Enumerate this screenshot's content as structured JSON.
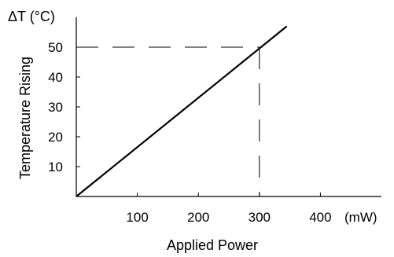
{
  "chart_data": {
    "type": "line",
    "title": "",
    "xlabel": "Applied Power",
    "x_unit_label": "(mW)",
    "ylabel": "Temperature Rising",
    "y_unit_label": "ΔT (°C)",
    "xlim": [
      0,
      500
    ],
    "ylim": [
      0,
      60
    ],
    "xticks": [
      100,
      200,
      300,
      400
    ],
    "yticks": [
      10,
      20,
      30,
      40,
      50
    ],
    "grid": false,
    "series": [
      {
        "x": [
          0,
          345
        ],
        "y": [
          0,
          57
        ]
      }
    ],
    "reference_point": {
      "x": 300,
      "y": 50
    }
  }
}
